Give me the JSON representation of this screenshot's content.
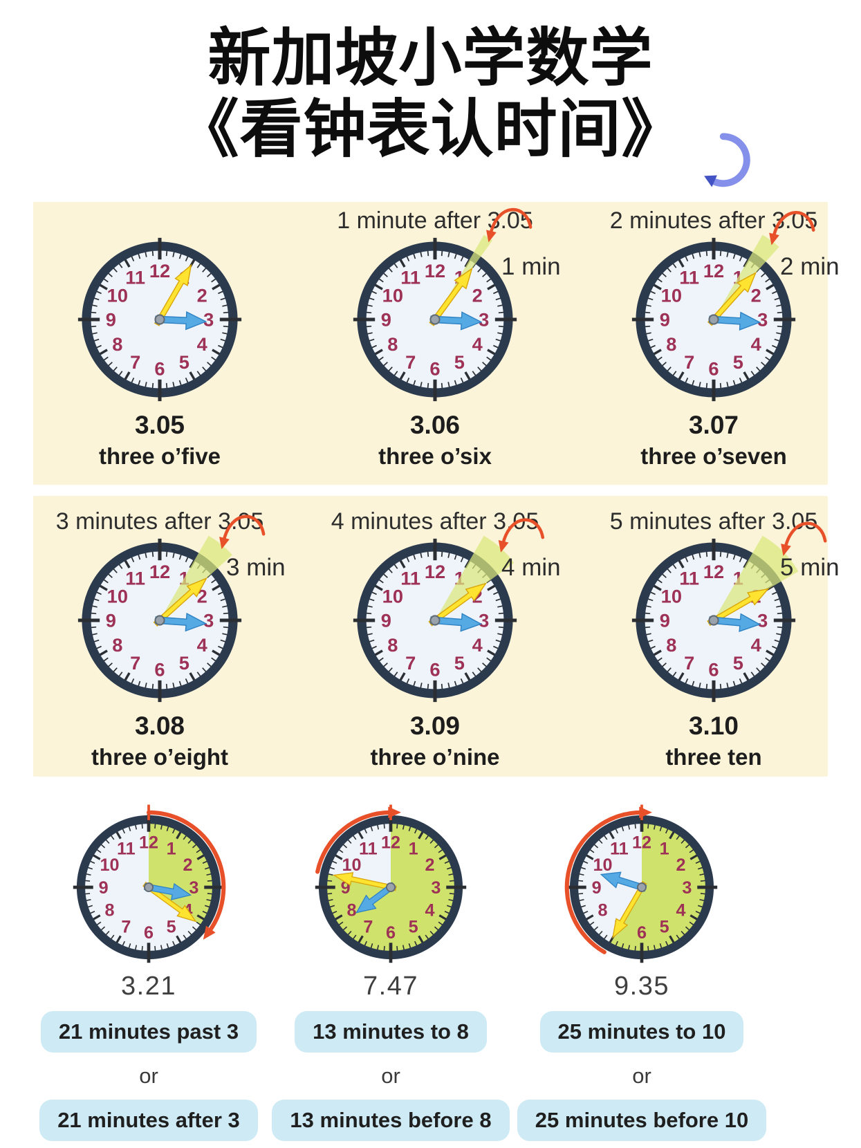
{
  "title": {
    "line1": "新加坡小学数学",
    "line2": "《看钟表认时间》"
  },
  "numerals": [
    "1",
    "2",
    "3",
    "4",
    "5",
    "6",
    "7",
    "8",
    "9",
    "10",
    "11",
    "12"
  ],
  "colors": {
    "panel_bg": "#fbf4d8",
    "clock_rim": "#2c3a4e",
    "clock_face": "#eef4f9",
    "numeral": "#9e3156",
    "tick": "#2b2f33",
    "minute_hand": "#ffe331",
    "minute_hand_edge": "#d9a50a",
    "hour_hand": "#56aae3",
    "hour_hand_edge": "#2e82c4",
    "pin": "#9aa3ac",
    "pin_edge": "#5f6a74",
    "wedge": "#dbe87c",
    "elapsed_green": "#cfe26b",
    "annotation_red": "#e8502a",
    "badge_bg": "#cdeaf5",
    "rotate_arrow_blue": "#8590ea",
    "rotate_arrow_head": "#4353c4"
  },
  "rows": [
    {
      "clocks": [
        {
          "header": "",
          "annotation": "",
          "time": "3.05",
          "caption": "three o’five",
          "hour": 3,
          "minute": 5,
          "wedge_from_minute": null
        },
        {
          "header": "1 minute after 3.05",
          "annotation": "1 min",
          "time": "3.06",
          "caption": "three o’six",
          "hour": 3,
          "minute": 6,
          "wedge_from_minute": 5
        },
        {
          "header": "2 minutes after 3.05",
          "annotation": "2 min",
          "time": "3.07",
          "caption": "three o’seven",
          "hour": 3,
          "minute": 7,
          "wedge_from_minute": 5
        }
      ]
    },
    {
      "clocks": [
        {
          "header": "3 minutes after 3.05",
          "annotation": "3 min",
          "time": "3.08",
          "caption": "three o’eight",
          "hour": 3,
          "minute": 8,
          "wedge_from_minute": 5
        },
        {
          "header": "4 minutes after 3.05",
          "annotation": "4 min",
          "time": "3.09",
          "caption": "three o’nine",
          "hour": 3,
          "minute": 9,
          "wedge_from_minute": 5
        },
        {
          "header": "5 minutes after 3.05",
          "annotation": "5 min",
          "time": "3.10",
          "caption": "three ten",
          "hour": 3,
          "minute": 10,
          "wedge_from_minute": 5
        }
      ]
    }
  ],
  "bottom": [
    {
      "time": "3.21",
      "hour": 3,
      "minute": 21,
      "shade_from": 0,
      "shade_to": 21,
      "arc_from": 0,
      "arc_to": 21,
      "phrase_primary": "21 minutes past 3",
      "conjunction": "or",
      "phrase_alt": "21 minutes after 3"
    },
    {
      "time": "7.47",
      "hour": 7,
      "minute": 47,
      "shade_from": 0,
      "shade_to": 47,
      "arc_from": 47,
      "arc_to": 60,
      "phrase_primary": "13 minutes to 8",
      "conjunction": "or",
      "phrase_alt": "13 minutes before 8"
    },
    {
      "time": "9.35",
      "hour": 9,
      "minute": 35,
      "shade_from": 0,
      "shade_to": 35,
      "arc_from": 35,
      "arc_to": 60,
      "phrase_primary": "25 minutes to 10",
      "conjunction": "or",
      "phrase_alt": "25 minutes before 10"
    }
  ]
}
